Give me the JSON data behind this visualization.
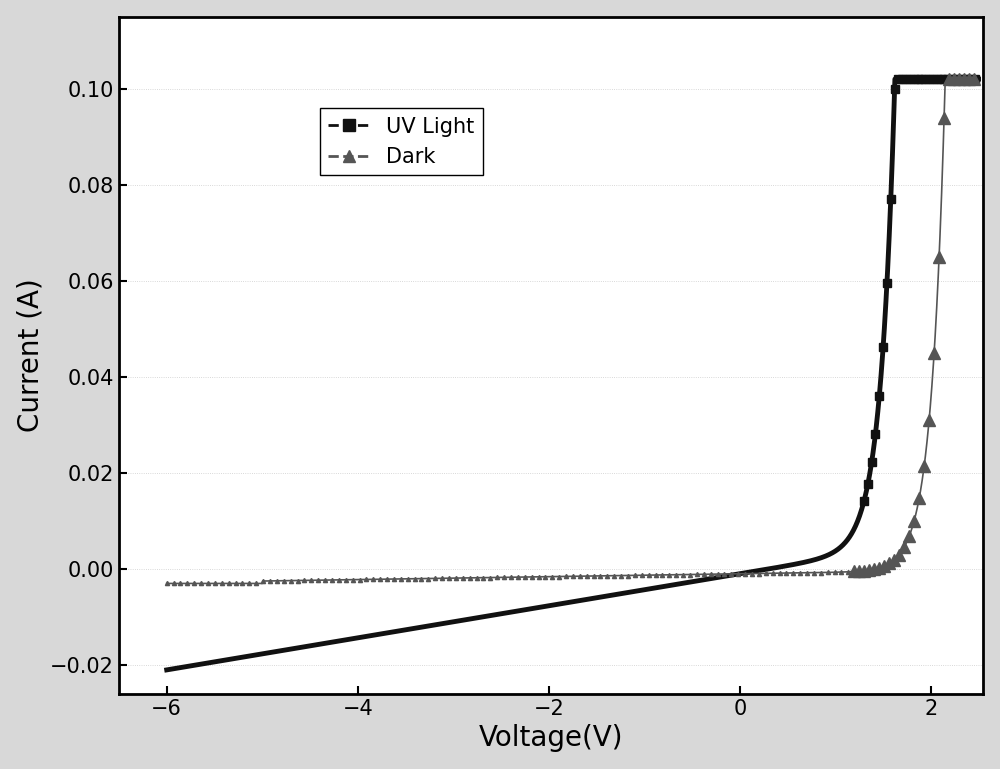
{
  "xlabel": "Voltage(V)",
  "ylabel": "Current (A)",
  "xlim": [
    -6.5,
    2.55
  ],
  "ylim": [
    -0.026,
    0.115
  ],
  "xticks": [
    -6,
    -4,
    -2,
    0,
    2
  ],
  "yticks": [
    -0.02,
    0.0,
    0.02,
    0.04,
    0.06,
    0.08,
    0.1
  ],
  "uv_color": "#111111",
  "dark_color": "#555555",
  "legend_labels": [
    "UV Light",
    "Dark"
  ],
  "clamp_current": 0.102,
  "fig_bg": "#d8d8d8",
  "plot_bg": "#ffffff"
}
